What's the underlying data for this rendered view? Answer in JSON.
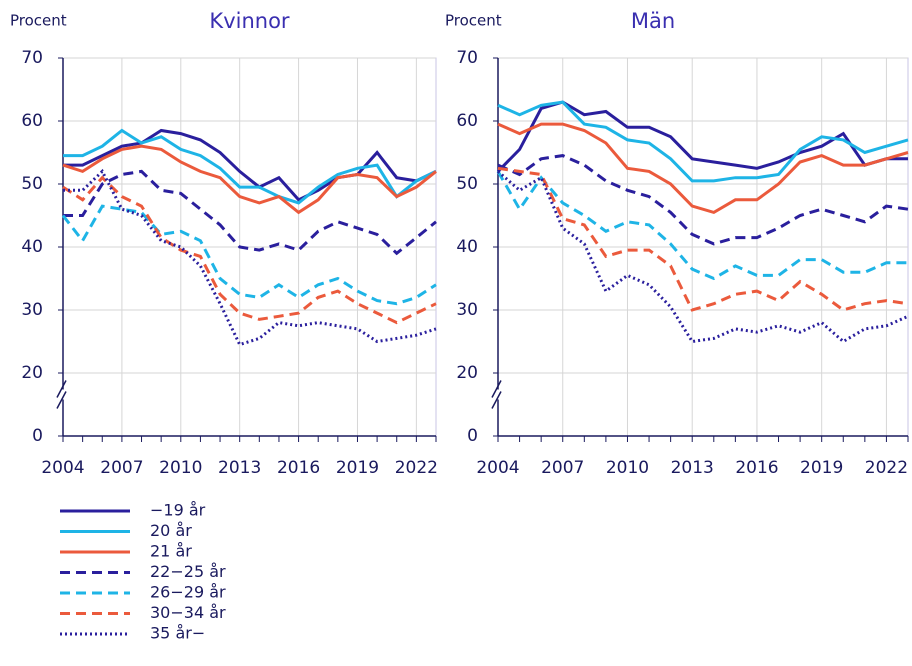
{
  "chart_data": [
    {
      "type": "line",
      "title": "Kvinnor",
      "y_label": "Procent",
      "x": [
        2004,
        2005,
        2006,
        2007,
        2008,
        2009,
        2010,
        2011,
        2012,
        2013,
        2014,
        2015,
        2016,
        2017,
        2018,
        2019,
        2020,
        2021,
        2022,
        2023
      ],
      "xlim": [
        2004,
        2023
      ],
      "xticks": [
        2004,
        2007,
        2010,
        2013,
        2016,
        2019,
        2022
      ],
      "ylim": [
        0,
        70
      ],
      "yticks": [
        0,
        20,
        30,
        40,
        50,
        60,
        70
      ],
      "axis_break": true,
      "grid": true,
      "series": [
        {
          "name": "−19 år",
          "color": "#2a1f9d",
          "dash": "solid",
          "values": [
            53,
            53,
            54.5,
            56,
            56.5,
            58.5,
            58,
            57,
            55,
            52,
            49.5,
            51,
            47.5,
            49,
            51,
            51.5,
            55,
            51,
            50.5,
            52
          ]
        },
        {
          "name": "20 år",
          "color": "#1eb4e6",
          "dash": "solid",
          "values": [
            54.5,
            54.5,
            56,
            58.5,
            56.5,
            57.5,
            55.5,
            54.5,
            52.5,
            49.5,
            49.5,
            48,
            47,
            49.5,
            51.5,
            52.5,
            53,
            48,
            50.5,
            52
          ]
        },
        {
          "name": "21 år",
          "color": "#eb5a3c",
          "dash": "solid",
          "values": [
            53,
            52,
            54,
            55.5,
            56,
            55.5,
            53.5,
            52,
            51,
            48,
            47,
            48,
            45.5,
            47.5,
            51,
            51.5,
            51,
            48,
            49.5,
            52
          ]
        },
        {
          "name": "22−25 år",
          "color": "#2a1f9d",
          "dash": "dashed",
          "values": [
            45,
            45,
            50,
            51.5,
            52,
            49,
            48.5,
            46,
            43.5,
            40,
            39.5,
            40.5,
            39.5,
            42.5,
            44,
            43,
            42,
            39,
            41.5,
            44
          ]
        },
        {
          "name": "26−29 år",
          "color": "#1eb4e6",
          "dash": "dashed",
          "values": [
            45,
            41,
            46.5,
            46,
            45.5,
            42,
            42.5,
            41,
            35,
            32.5,
            32,
            34,
            32,
            34,
            35,
            33,
            31.5,
            31,
            32,
            34
          ]
        },
        {
          "name": "30−34 år",
          "color": "#eb5a3c",
          "dash": "dashed",
          "values": [
            49.5,
            47.5,
            51,
            48,
            46.5,
            41.5,
            39.5,
            38.5,
            32.5,
            29.5,
            28.5,
            29,
            29.5,
            32,
            33,
            31,
            29.5,
            28,
            29.5,
            31
          ]
        },
        {
          "name": "35 år−",
          "color": "#2a1f9d",
          "dash": "dotted",
          "values": [
            49,
            49,
            52,
            46,
            45,
            41,
            40,
            37,
            31,
            24.5,
            25.5,
            28,
            27.5,
            28,
            27.5,
            27,
            25,
            25.5,
            26,
            27
          ]
        }
      ]
    },
    {
      "type": "line",
      "title": "Män",
      "y_label": "Procent",
      "x": [
        2004,
        2005,
        2006,
        2007,
        2008,
        2009,
        2010,
        2011,
        2012,
        2013,
        2014,
        2015,
        2016,
        2017,
        2018,
        2019,
        2020,
        2021,
        2022,
        2023
      ],
      "xlim": [
        2004,
        2023
      ],
      "xticks": [
        2004,
        2007,
        2010,
        2013,
        2016,
        2019,
        2022
      ],
      "ylim": [
        0,
        70
      ],
      "yticks": [
        0,
        20,
        30,
        40,
        50,
        60,
        70
      ],
      "axis_break": true,
      "grid": true,
      "series": [
        {
          "color": "#2a1f9d",
          "dash": "solid",
          "values": [
            52,
            55.5,
            62,
            63,
            61,
            61.5,
            59,
            59,
            57.5,
            54,
            53.5,
            53,
            52.5,
            53.5,
            55,
            56,
            58,
            53,
            54,
            54
          ]
        },
        {
          "color": "#1eb4e6",
          "dash": "solid",
          "values": [
            62.5,
            61,
            62.5,
            63,
            59.5,
            59,
            57,
            56.5,
            54,
            50.5,
            50.5,
            51,
            51,
            51.5,
            55.5,
            57.5,
            57,
            55,
            56,
            57
          ]
        },
        {
          "color": "#eb5a3c",
          "dash": "solid",
          "values": [
            59.5,
            58,
            59.5,
            59.5,
            58.5,
            56.5,
            52.5,
            52,
            50,
            46.5,
            45.5,
            47.5,
            47.5,
            50,
            53.5,
            54.5,
            53,
            53,
            54,
            55
          ]
        },
        {
          "color": "#2a1f9d",
          "dash": "dashed",
          "values": [
            53,
            51.5,
            54,
            54.5,
            53,
            50.5,
            49,
            48,
            45.5,
            42,
            40.5,
            41.5,
            41.5,
            43,
            45,
            46,
            45,
            44,
            46.5,
            46
          ]
        },
        {
          "color": "#1eb4e6",
          "dash": "dashed",
          "values": [
            52,
            46,
            51,
            47,
            45,
            42.5,
            44,
            43.5,
            40.5,
            36.5,
            35,
            37,
            35.5,
            35.5,
            38,
            38,
            36,
            36,
            37.5,
            37.5
          ]
        },
        {
          "color": "#eb5a3c",
          "dash": "dashed",
          "values": [
            52.5,
            52,
            51.5,
            44.5,
            43.5,
            38.5,
            39.5,
            39.5,
            37,
            30,
            31,
            32.5,
            33,
            31.5,
            34.5,
            32.5,
            30,
            31,
            31.5,
            31
          ]
        },
        {
          "color": "#2a1f9d",
          "dash": "dotted",
          "values": [
            52,
            49,
            51,
            43,
            40.5,
            33,
            35.5,
            34,
            30.5,
            25,
            25.5,
            27,
            26.5,
            27.5,
            26.5,
            28,
            25,
            27,
            27.5,
            29
          ]
        }
      ]
    }
  ]
}
